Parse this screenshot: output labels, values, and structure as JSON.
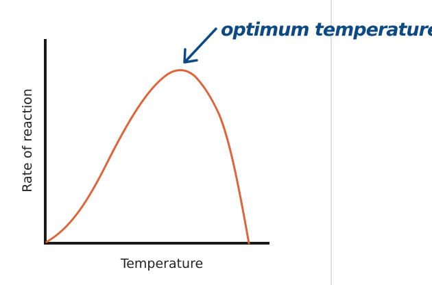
{
  "diagram": {
    "x_axis_label": "Temperature",
    "y_axis_label": "Rate of reaction",
    "annotation": "optimum temperature.",
    "colors": {
      "curve": "#e0643a",
      "axes": "#1a1a1a",
      "annotation": "#0d4a85",
      "divider": "#cccccc"
    }
  }
}
